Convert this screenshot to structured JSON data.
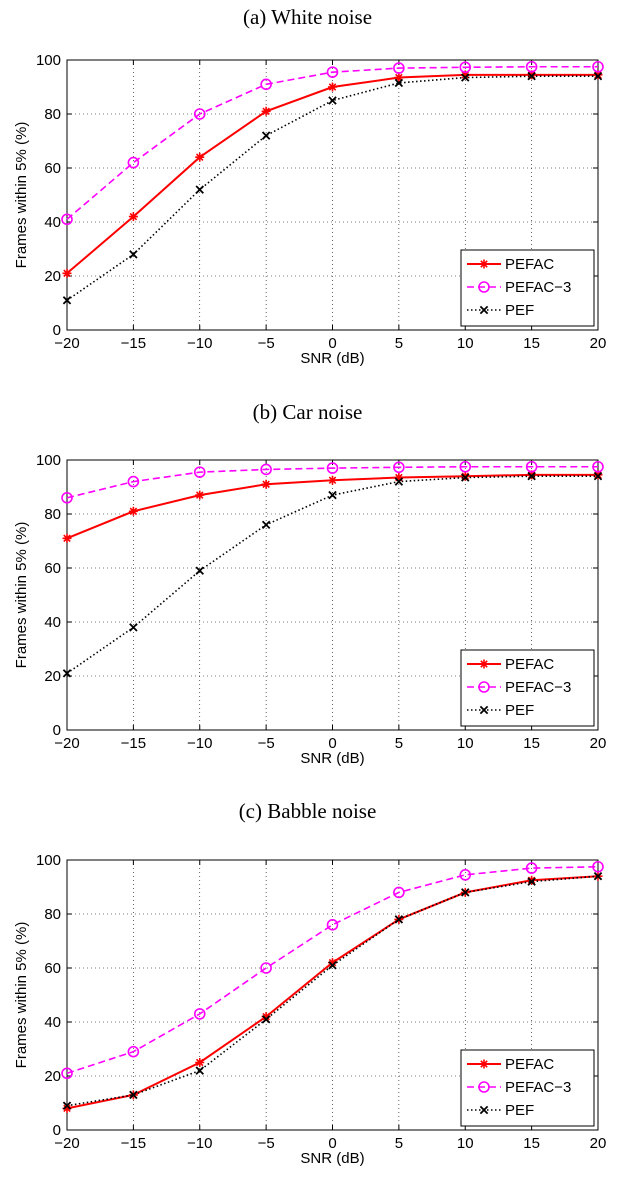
{
  "chart_data": [
    {
      "type": "line",
      "title": "(a) White noise",
      "xlabel": "SNR (dB)",
      "ylabel": "Frames within 5% (%)",
      "x": [
        -20,
        -15,
        -10,
        -5,
        0,
        5,
        10,
        15,
        20
      ],
      "xlim": [
        -20,
        20
      ],
      "ylim": [
        0,
        100
      ],
      "xticks": [
        "−20",
        "−15",
        "−10",
        "−5",
        "0",
        "5",
        "10",
        "15",
        "20"
      ],
      "yticks": [
        "0",
        "20",
        "40",
        "60",
        "80",
        "100"
      ],
      "grid": true,
      "legend_position": "bottom-right",
      "series": [
        {
          "name": "PEFAC",
          "values": [
            21,
            42,
            64,
            81,
            90,
            93.5,
            94.5,
            94.5,
            94.5
          ],
          "color": "#ff0000",
          "dash": "solid",
          "marker": "star"
        },
        {
          "name": "PEFAC−3",
          "values": [
            41,
            62,
            80,
            91,
            95.5,
            97,
            97.3,
            97.5,
            97.5
          ],
          "color": "#ff00ff",
          "dash": "dashed",
          "marker": "circle"
        },
        {
          "name": "PEF",
          "values": [
            11,
            28,
            52,
            72,
            85,
            91.5,
            93.5,
            94,
            94
          ],
          "color": "#000000",
          "dash": "dotted",
          "marker": "x"
        }
      ]
    },
    {
      "type": "line",
      "title": "(b) Car noise",
      "xlabel": "SNR (dB)",
      "ylabel": "Frames within 5% (%)",
      "x": [
        -20,
        -15,
        -10,
        -5,
        0,
        5,
        10,
        15,
        20
      ],
      "xlim": [
        -20,
        20
      ],
      "ylim": [
        0,
        100
      ],
      "xticks": [
        "−20",
        "−15",
        "−10",
        "−5",
        "0",
        "5",
        "10",
        "15",
        "20"
      ],
      "yticks": [
        "0",
        "20",
        "40",
        "60",
        "80",
        "100"
      ],
      "grid": true,
      "legend_position": "bottom-right",
      "series": [
        {
          "name": "PEFAC",
          "values": [
            71,
            81,
            87,
            91,
            92.5,
            93.5,
            94,
            94.5,
            94.5
          ],
          "color": "#ff0000",
          "dash": "solid",
          "marker": "star"
        },
        {
          "name": "PEFAC−3",
          "values": [
            86,
            92,
            95.5,
            96.5,
            97,
            97.3,
            97.5,
            97.5,
            97.5
          ],
          "color": "#ff00ff",
          "dash": "dashed",
          "marker": "circle"
        },
        {
          "name": "PEF",
          "values": [
            21,
            38,
            59,
            76,
            87,
            92,
            93.5,
            94,
            94
          ],
          "color": "#000000",
          "dash": "dotted",
          "marker": "x"
        }
      ]
    },
    {
      "type": "line",
      "title": "(c) Babble noise",
      "xlabel": "SNR (dB)",
      "ylabel": "Frames within 5% (%)",
      "x": [
        -20,
        -15,
        -10,
        -5,
        0,
        5,
        10,
        15,
        20
      ],
      "xlim": [
        -20,
        20
      ],
      "ylim": [
        0,
        100
      ],
      "xticks": [
        "−20",
        "−15",
        "−10",
        "−5",
        "0",
        "5",
        "10",
        "15",
        "20"
      ],
      "yticks": [
        "0",
        "20",
        "40",
        "60",
        "80",
        "100"
      ],
      "grid": true,
      "legend_position": "bottom-right",
      "series": [
        {
          "name": "PEFAC",
          "values": [
            8,
            13,
            25,
            42,
            62,
            78,
            88,
            92.5,
            94
          ],
          "color": "#ff0000",
          "dash": "solid",
          "marker": "star"
        },
        {
          "name": "PEFAC−3",
          "values": [
            21,
            29,
            43,
            60,
            76,
            88,
            94.5,
            97,
            97.5
          ],
          "color": "#ff00ff",
          "dash": "dashed",
          "marker": "circle"
        },
        {
          "name": "PEF",
          "values": [
            9,
            13,
            22,
            41,
            61,
            78,
            88,
            92,
            94
          ],
          "color": "#000000",
          "dash": "dotted",
          "marker": "x"
        }
      ]
    }
  ]
}
